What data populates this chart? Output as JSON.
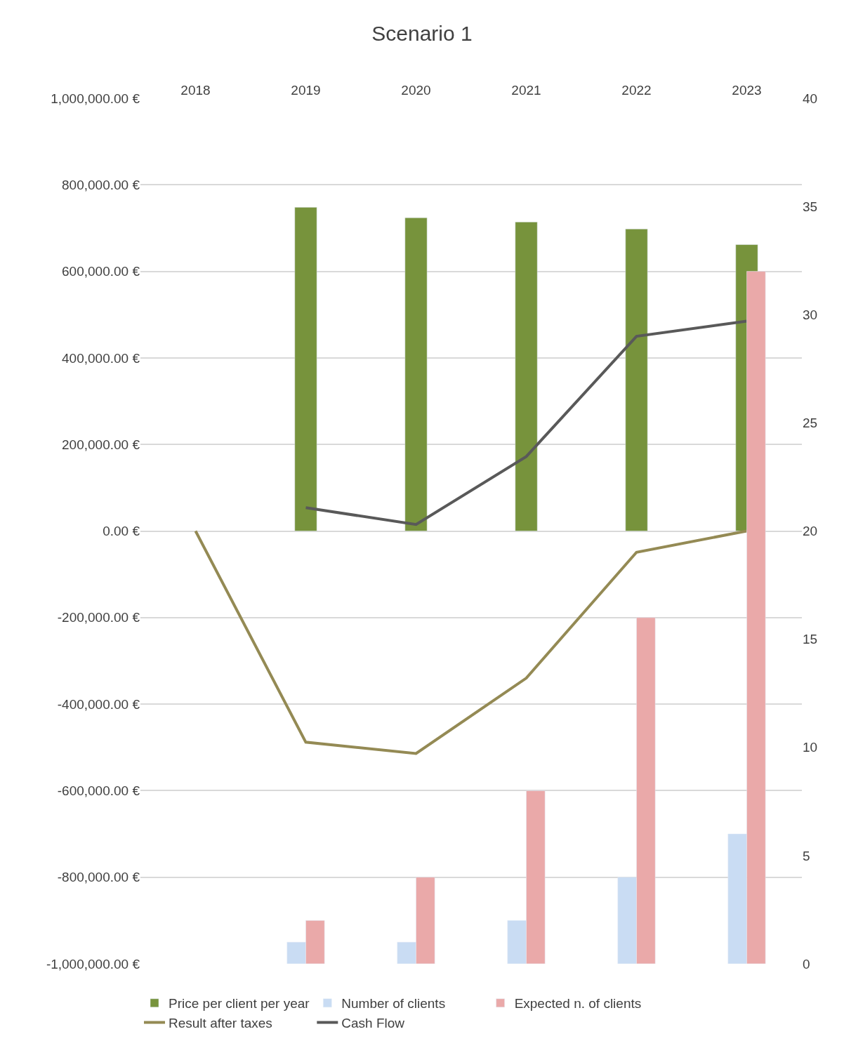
{
  "chart_data": {
    "type": "bar",
    "title": "Scenario 1",
    "categories": [
      "2018",
      "2019",
      "2020",
      "2021",
      "2022",
      "2023"
    ],
    "series": [
      {
        "name": "Price per client per year",
        "color": "#77933c",
        "values": [
          null,
          748000,
          724000,
          714000,
          698000,
          662000
        ]
      },
      {
        "name": "Number of clients",
        "axis": "y2",
        "color": "#c9dcf3",
        "values": [
          null,
          1,
          1,
          2,
          4,
          6
        ]
      },
      {
        "name": "Expected n. of clients",
        "axis": "y2",
        "color": "#eaa9a9",
        "values": [
          null,
          2,
          4,
          8,
          16,
          32
        ]
      },
      {
        "name": "Result after taxes",
        "type": "line",
        "color": "#948a54",
        "values": [
          0,
          -488000,
          -514000,
          -340000,
          -49000,
          0
        ]
      },
      {
        "name": "Cash Flow",
        "type": "line",
        "color": "#595959",
        "values": [
          null,
          54000,
          15000,
          172000,
          450000,
          485000
        ]
      }
    ],
    "ylim": [
      -1000000,
      1000000
    ],
    "yticks": [
      {
        "value": -1000000,
        "label": "-1,000,000.00 €"
      },
      {
        "value": -800000,
        "label": "-800,000.00 €"
      },
      {
        "value": -600000,
        "label": "-600,000.00 €"
      },
      {
        "value": -400000,
        "label": "-400,000.00 €"
      },
      {
        "value": -200000,
        "label": "-200,000.00 €"
      },
      {
        "value": 0,
        "label": "0.00 €"
      },
      {
        "value": 200000,
        "label": "200,000.00 €"
      },
      {
        "value": 400000,
        "label": "400,000.00 €"
      },
      {
        "value": 600000,
        "label": "600,000.00 €"
      },
      {
        "value": 800000,
        "label": "800,000.00 €"
      },
      {
        "value": 1000000,
        "label": "1,000,000.00 €"
      }
    ],
    "y2lim": [
      0,
      40
    ],
    "y2ticks": [
      0,
      5,
      10,
      15,
      20,
      25,
      30,
      35,
      40
    ],
    "grid": "y",
    "legend": "bottom",
    "marker": "none",
    "line_style": "solid"
  }
}
